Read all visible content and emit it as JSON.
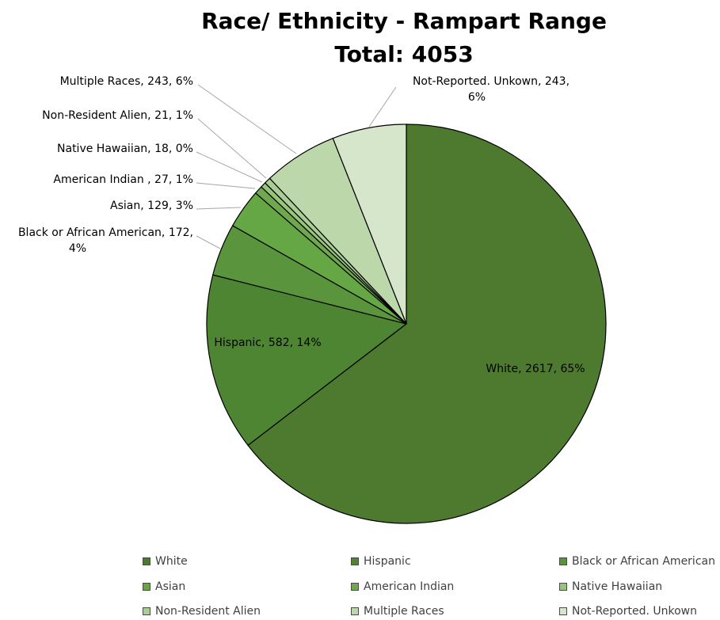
{
  "colors": {
    "title": "#000000",
    "label": "#000000",
    "leader_line": "#a6a6a6",
    "slice_border": "#000000",
    "legend_text": "#404040"
  },
  "chart_data": {
    "type": "pie",
    "title": "Race/ Ethnicity - Rampart Range",
    "subtitle": "Total: 4053",
    "slices": [
      {
        "label": "White",
        "value": 2617,
        "percent": "65%",
        "color": "#4e7a2f",
        "data_label": "White, 2617, 65%"
      },
      {
        "label": "Hispanic",
        "value": 582,
        "percent": "14%",
        "color": "#4e8533",
        "data_label": "Hispanic, 582, 14%"
      },
      {
        "label": "Black or African American",
        "value": 172,
        "percent": "4%",
        "color": "#5a943c",
        "data_label": "Black or African American, 172, 4%"
      },
      {
        "label": "Asian",
        "value": 129,
        "percent": "3%",
        "color": "#66a745",
        "data_label": "Asian, 129, 3%"
      },
      {
        "label": "American Indian",
        "value": 27,
        "percent": "1%",
        "color": "#6fa84f",
        "data_label": "American Indian , 27, 1%"
      },
      {
        "label": "Native Hawaiian",
        "value": 18,
        "percent": "0%",
        "color": "#97c47d",
        "data_label": "Native Hawaiian, 18, 0%"
      },
      {
        "label": "Non-Resident Alien",
        "value": 21,
        "percent": "1%",
        "color": "#a9ce94",
        "data_label": "Non-Resident Alien, 21, 1%"
      },
      {
        "label": "Multiple Races",
        "value": 243,
        "percent": "6%",
        "color": "#bcd8ab",
        "data_label": "Multiple Races, 243, 6%"
      },
      {
        "label": "Not-Reported. Unkown",
        "value": 243,
        "percent": "6%",
        "color": "#d5e6cb",
        "data_label": "Not-Reported. Unkown, 243, 6%"
      }
    ],
    "legend_position": "bottom"
  }
}
